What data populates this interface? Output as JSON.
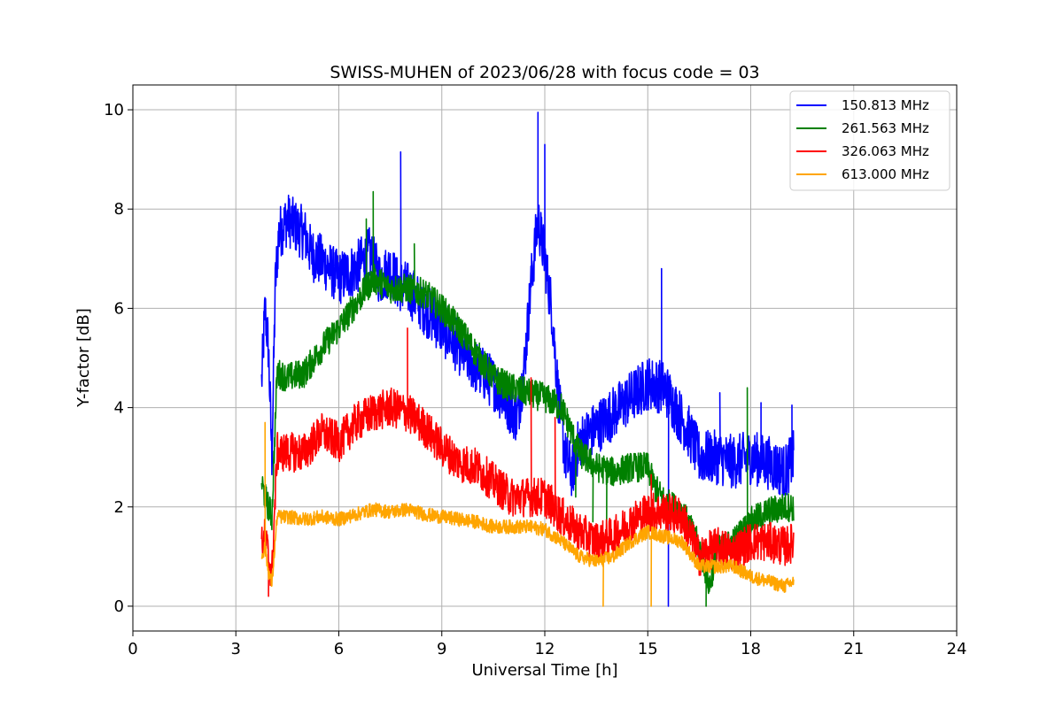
{
  "chart_data": {
    "type": "line",
    "title": "SWISS-MUHEN of 2023/06/28 with focus code = 03",
    "xlabel": "Universal Time [h]",
    "ylabel": "Y-factor [dB]",
    "xlim": [
      0,
      24
    ],
    "ylim": [
      -0.5,
      10.5
    ],
    "xticks": [
      0,
      3,
      6,
      9,
      12,
      15,
      18,
      21,
      24
    ],
    "yticks": [
      0,
      2,
      4,
      6,
      8,
      10
    ],
    "grid": true,
    "legend_position": "top-right",
    "series": [
      {
        "name": "150.813 MHz",
        "color": "#0000ff",
        "noise": 0.55,
        "points": [
          [
            3.75,
            4.5
          ],
          [
            3.85,
            6.0
          ],
          [
            3.95,
            5.2
          ],
          [
            4.05,
            3.0
          ],
          [
            4.15,
            6.5
          ],
          [
            4.25,
            7.5
          ],
          [
            4.5,
            7.8
          ],
          [
            4.8,
            7.6
          ],
          [
            5.0,
            7.5
          ],
          [
            5.2,
            7.1
          ],
          [
            5.6,
            6.9
          ],
          [
            6.0,
            6.6
          ],
          [
            6.5,
            6.8
          ],
          [
            6.9,
            7.1
          ],
          [
            7.2,
            6.6
          ],
          [
            7.5,
            6.8
          ],
          [
            7.7,
            6.5
          ],
          [
            8.0,
            6.4
          ],
          [
            8.5,
            6.0
          ],
          [
            9.0,
            5.6
          ],
          [
            9.5,
            5.2
          ],
          [
            10.0,
            4.8
          ],
          [
            10.5,
            4.5
          ],
          [
            11.0,
            4.0
          ],
          [
            11.2,
            3.8
          ],
          [
            11.4,
            4.8
          ],
          [
            11.6,
            6.5
          ],
          [
            11.8,
            7.8
          ],
          [
            12.0,
            7.0
          ],
          [
            12.2,
            6.0
          ],
          [
            12.4,
            4.2
          ],
          [
            12.6,
            3.0
          ],
          [
            12.8,
            2.7
          ],
          [
            13.0,
            3.3
          ],
          [
            13.5,
            3.6
          ],
          [
            14.0,
            3.9
          ],
          [
            14.5,
            4.2
          ],
          [
            15.0,
            4.5
          ],
          [
            15.5,
            4.4
          ],
          [
            15.8,
            4.0
          ],
          [
            16.2,
            3.5
          ],
          [
            16.5,
            3.0
          ],
          [
            17.0,
            3.0
          ],
          [
            17.5,
            2.9
          ],
          [
            18.0,
            3.0
          ],
          [
            18.5,
            2.9
          ],
          [
            19.0,
            2.7
          ],
          [
            19.25,
            3.0
          ]
        ],
        "spikes": [
          [
            7.8,
            9.15
          ],
          [
            11.8,
            9.95
          ],
          [
            12.0,
            9.3
          ],
          [
            15.4,
            6.8
          ],
          [
            15.6,
            0.0
          ],
          [
            17.1,
            4.3
          ],
          [
            18.3,
            4.1
          ],
          [
            19.2,
            4.05
          ]
        ]
      },
      {
        "name": "261.563 MHz",
        "color": "#008000",
        "noise": 0.3,
        "points": [
          [
            3.75,
            2.5
          ],
          [
            3.85,
            2.2
          ],
          [
            3.95,
            2.0
          ],
          [
            4.05,
            1.8
          ],
          [
            4.2,
            4.7
          ],
          [
            4.5,
            4.6
          ],
          [
            5.0,
            4.7
          ],
          [
            5.5,
            5.2
          ],
          [
            6.0,
            5.6
          ],
          [
            6.5,
            6.1
          ],
          [
            7.0,
            6.6
          ],
          [
            7.5,
            6.4
          ],
          [
            8.0,
            6.4
          ],
          [
            8.5,
            6.3
          ],
          [
            9.0,
            6.0
          ],
          [
            9.5,
            5.6
          ],
          [
            10.0,
            5.1
          ],
          [
            10.5,
            4.6
          ],
          [
            11.0,
            4.4
          ],
          [
            11.5,
            4.3
          ],
          [
            12.0,
            4.2
          ],
          [
            12.5,
            4.0
          ],
          [
            13.0,
            3.1
          ],
          [
            13.5,
            2.8
          ],
          [
            14.0,
            2.7
          ],
          [
            14.5,
            2.8
          ],
          [
            15.0,
            2.8
          ],
          [
            15.2,
            2.4
          ],
          [
            15.5,
            2.1
          ],
          [
            16.0,
            1.9
          ],
          [
            16.5,
            1.2
          ],
          [
            16.8,
            0.4
          ],
          [
            17.0,
            1.1
          ],
          [
            17.5,
            1.3
          ],
          [
            18.0,
            1.7
          ],
          [
            18.5,
            1.9
          ],
          [
            19.0,
            2.0
          ],
          [
            19.25,
            2.0
          ]
        ],
        "spikes": [
          [
            6.8,
            7.8
          ],
          [
            7.0,
            8.35
          ],
          [
            8.2,
            7.3
          ],
          [
            12.9,
            2.2
          ],
          [
            13.4,
            1.7
          ],
          [
            13.8,
            1.6
          ],
          [
            16.7,
            0.0
          ],
          [
            17.9,
            4.4
          ]
        ]
      },
      {
        "name": "326.063 MHz",
        "color": "#ff0000",
        "noise": 0.4,
        "points": [
          [
            3.75,
            1.2
          ],
          [
            3.85,
            1.4
          ],
          [
            3.95,
            1.0
          ],
          [
            4.05,
            0.6
          ],
          [
            4.2,
            3.1
          ],
          [
            4.5,
            3.1
          ],
          [
            5.0,
            3.1
          ],
          [
            5.5,
            3.5
          ],
          [
            6.0,
            3.3
          ],
          [
            6.5,
            3.7
          ],
          [
            7.0,
            3.9
          ],
          [
            7.5,
            4.0
          ],
          [
            8.0,
            3.9
          ],
          [
            8.5,
            3.6
          ],
          [
            9.0,
            3.2
          ],
          [
            9.5,
            2.9
          ],
          [
            10.0,
            2.8
          ],
          [
            10.5,
            2.5
          ],
          [
            11.0,
            2.2
          ],
          [
            11.5,
            2.2
          ],
          [
            12.0,
            2.2
          ],
          [
            12.5,
            1.8
          ],
          [
            13.0,
            1.5
          ],
          [
            13.5,
            1.3
          ],
          [
            14.0,
            1.4
          ],
          [
            14.5,
            1.7
          ],
          [
            15.0,
            1.9
          ],
          [
            15.5,
            1.9
          ],
          [
            16.0,
            1.8
          ],
          [
            16.5,
            1.0
          ],
          [
            17.0,
            1.2
          ],
          [
            17.5,
            1.1
          ],
          [
            18.0,
            1.3
          ],
          [
            18.5,
            1.3
          ],
          [
            19.0,
            1.2
          ],
          [
            19.25,
            1.3
          ]
        ],
        "spikes": [
          [
            3.95,
            0.2
          ],
          [
            8.0,
            5.6
          ],
          [
            11.6,
            4.6
          ],
          [
            12.3,
            3.8
          ],
          [
            15.1,
            2.65
          ]
        ]
      },
      {
        "name": "613.000 MHz",
        "color": "#ffa500",
        "noise": 0.14,
        "points": [
          [
            3.75,
            1.0
          ],
          [
            3.85,
            1.2
          ],
          [
            3.95,
            0.7
          ],
          [
            4.05,
            0.45
          ],
          [
            4.2,
            1.8
          ],
          [
            4.5,
            1.8
          ],
          [
            5.0,
            1.75
          ],
          [
            5.5,
            1.8
          ],
          [
            6.0,
            1.75
          ],
          [
            6.5,
            1.85
          ],
          [
            7.0,
            1.95
          ],
          [
            7.5,
            1.9
          ],
          [
            8.0,
            1.95
          ],
          [
            8.5,
            1.85
          ],
          [
            9.0,
            1.8
          ],
          [
            9.5,
            1.75
          ],
          [
            10.0,
            1.7
          ],
          [
            10.5,
            1.6
          ],
          [
            11.0,
            1.6
          ],
          [
            11.5,
            1.6
          ],
          [
            12.0,
            1.55
          ],
          [
            12.5,
            1.3
          ],
          [
            13.0,
            1.0
          ],
          [
            13.5,
            0.9
          ],
          [
            14.0,
            1.0
          ],
          [
            14.5,
            1.3
          ],
          [
            15.0,
            1.5
          ],
          [
            15.5,
            1.4
          ],
          [
            16.0,
            1.3
          ],
          [
            16.5,
            0.8
          ],
          [
            17.0,
            0.8
          ],
          [
            17.5,
            0.8
          ],
          [
            18.0,
            0.6
          ],
          [
            18.5,
            0.5
          ],
          [
            19.0,
            0.4
          ],
          [
            19.25,
            0.5
          ]
        ],
        "spikes": [
          [
            3.85,
            3.7
          ],
          [
            13.7,
            0.0
          ],
          [
            15.1,
            0.0
          ]
        ]
      }
    ]
  }
}
